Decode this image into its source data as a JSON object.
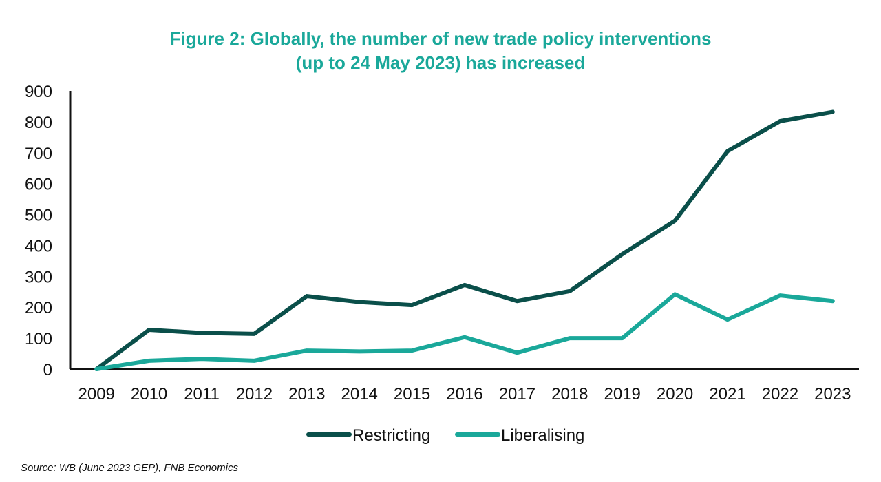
{
  "chart_data": {
    "type": "line",
    "title": "Figure 2: Globally, the number of new trade policy interventions",
    "subtitle": "(up to 24 May 2023) has increased",
    "xlabel": "",
    "ylabel": "",
    "x": [
      "2009",
      "2010",
      "2011",
      "2012",
      "2013",
      "2014",
      "2015",
      "2016",
      "2017",
      "2018",
      "2019",
      "2020",
      "2021",
      "2022",
      "2023"
    ],
    "y_ticks": [
      "0",
      "100",
      "200",
      "300",
      "400",
      "500",
      "600",
      "700",
      "800",
      "900"
    ],
    "ylim": [
      0,
      900
    ],
    "grid": false,
    "legend_position": "bottom",
    "series": [
      {
        "name": "Restricting",
        "color": "#0a4f4a",
        "values": [
          0,
          127,
          117,
          114,
          236,
          217,
          207,
          272,
          220,
          252,
          372,
          480,
          705,
          802,
          832
        ]
      },
      {
        "name": "Liberalising",
        "color": "#1aa89a",
        "values": [
          0,
          27,
          33,
          27,
          60,
          57,
          60,
          103,
          53,
          100,
          100,
          242,
          160,
          238,
          220
        ]
      }
    ],
    "source": "Source: WB (June 2023 GEP), FNB Economics"
  }
}
